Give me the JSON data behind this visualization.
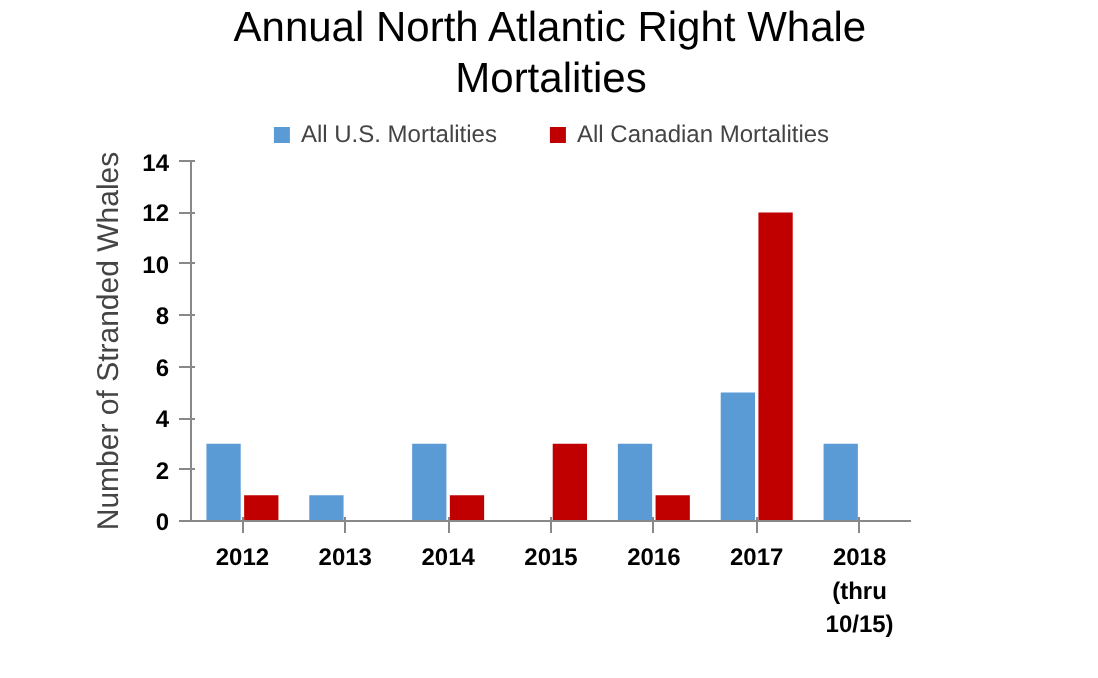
{
  "chart_data": {
    "type": "bar",
    "title": "Annual North Atlantic Right Whale Mortalities",
    "ylabel": "Number of Stranded Whales",
    "categories": [
      "2012",
      "2013",
      "2014",
      "2015",
      "2016",
      "2017",
      "2018\n(thru\n10/15)"
    ],
    "series": [
      {
        "name": "All U.S. Mortalities",
        "color": "#5b9bd5",
        "values": [
          3,
          1,
          3,
          0,
          3,
          5,
          3
        ]
      },
      {
        "name": "All Canadian Mortalities",
        "color": "#c00000",
        "values": [
          1,
          0,
          1,
          3,
          1,
          12,
          0
        ]
      }
    ],
    "ylim": [
      0,
      14
    ],
    "yticks": [
      0,
      2,
      4,
      6,
      8,
      10,
      12,
      14
    ],
    "grid": false,
    "legend": "top"
  }
}
